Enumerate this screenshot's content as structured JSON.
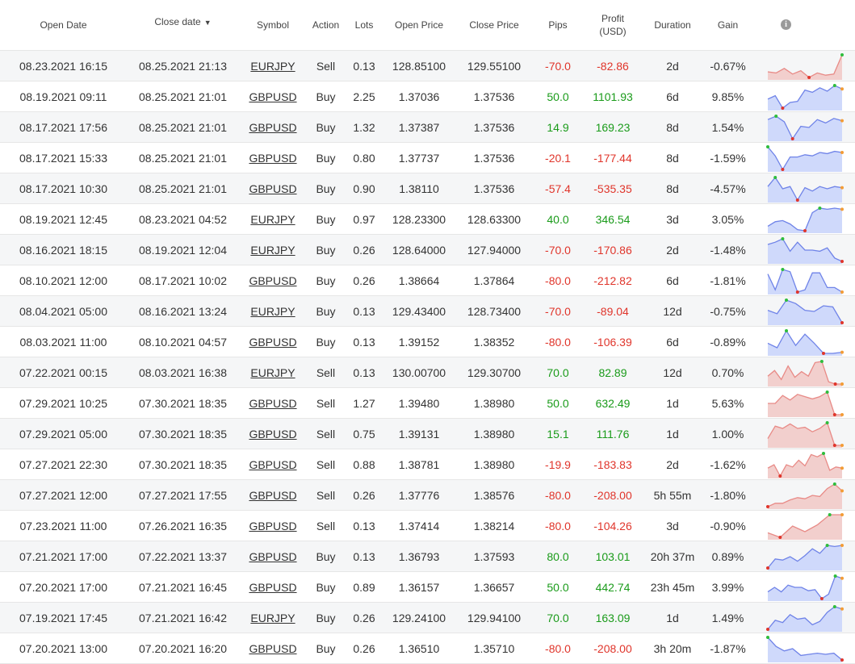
{
  "headers": {
    "open_date": "Open Date",
    "close_date": "Close date",
    "close_date_sort": "▼",
    "symbol": "Symbol",
    "action": "Action",
    "lots": "Lots",
    "open_price": "Open Price",
    "close_price": "Close Price",
    "pips": "Pips",
    "profit_line1": "Profit",
    "profit_line2": "(USD)",
    "duration": "Duration",
    "gain": "Gain",
    "info_icon": "i"
  },
  "colors": {
    "positive_text": "#1a9b1a",
    "negative_text": "#e0352b",
    "buy_line": "#6f83e8",
    "buy_fill": "#cfd9fb",
    "sell_line": "#e88a86",
    "sell_fill": "#f2cfcd",
    "marker_high": "#2ebd3c",
    "marker_low": "#e0352b",
    "marker_end": "#f39c35"
  },
  "rows": [
    {
      "open_date": "08.23.2021 16:15",
      "close_date": "08.25.2021 21:13",
      "symbol": "EURJPY",
      "action": "Sell",
      "lots": "0.13",
      "open_price": "128.85100",
      "close_price": "129.55100",
      "pips": "-70.0",
      "profit": "-82.86",
      "duration": "2d",
      "gain": "-0.67%",
      "trend": [
        0.25,
        0.2,
        0.4,
        0.15,
        0.3,
        0.0,
        0.2,
        0.1,
        0.15,
        1.0
      ]
    },
    {
      "open_date": "08.19.2021 09:11",
      "close_date": "08.25.2021 21:01",
      "symbol": "GBPUSD",
      "action": "Buy",
      "lots": "2.25",
      "open_price": "1.37036",
      "close_price": "1.37536",
      "pips": "50.0",
      "profit": "1101.93",
      "duration": "6d",
      "gain": "9.85%",
      "trend": [
        0.4,
        0.55,
        0.0,
        0.25,
        0.3,
        0.8,
        0.7,
        0.9,
        0.75,
        1.0,
        0.85
      ]
    },
    {
      "open_date": "08.17.2021 17:56",
      "close_date": "08.25.2021 21:01",
      "symbol": "GBPUSD",
      "action": "Buy",
      "lots": "1.32",
      "open_price": "1.37387",
      "close_price": "1.37536",
      "pips": "14.9",
      "profit": "169.23",
      "duration": "8d",
      "gain": "1.54%",
      "trend": [
        0.85,
        1.0,
        0.75,
        0.0,
        0.55,
        0.5,
        0.85,
        0.7,
        0.9,
        0.8
      ]
    },
    {
      "open_date": "08.17.2021 15:33",
      "close_date": "08.25.2021 21:01",
      "symbol": "GBPUSD",
      "action": "Buy",
      "lots": "0.80",
      "open_price": "1.37737",
      "close_price": "1.37536",
      "pips": "-20.1",
      "profit": "-177.44",
      "duration": "8d",
      "gain": "-1.59%",
      "trend": [
        1.0,
        0.6,
        0.0,
        0.55,
        0.55,
        0.65,
        0.6,
        0.75,
        0.7,
        0.8,
        0.75
      ]
    },
    {
      "open_date": "08.17.2021 10:30",
      "close_date": "08.25.2021 21:01",
      "symbol": "GBPUSD",
      "action": "Buy",
      "lots": "0.90",
      "open_price": "1.38110",
      "close_price": "1.37536",
      "pips": "-57.4",
      "profit": "-535.35",
      "duration": "8d",
      "gain": "-4.57%",
      "trend": [
        0.6,
        1.0,
        0.5,
        0.6,
        0.0,
        0.55,
        0.4,
        0.6,
        0.5,
        0.6,
        0.55
      ]
    },
    {
      "open_date": "08.19.2021 12:45",
      "close_date": "08.23.2021 04:52",
      "symbol": "EURJPY",
      "action": "Buy",
      "lots": "0.97",
      "open_price": "128.23300",
      "close_price": "128.63300",
      "pips": "40.0",
      "profit": "346.54",
      "duration": "3d",
      "gain": "3.05%",
      "trend": [
        0.2,
        0.4,
        0.45,
        0.3,
        0.05,
        0.0,
        0.8,
        1.0,
        0.95,
        1.0,
        0.95
      ]
    },
    {
      "open_date": "08.16.2021 18:15",
      "close_date": "08.19.2021 12:04",
      "symbol": "EURJPY",
      "action": "Buy",
      "lots": "0.26",
      "open_price": "128.64000",
      "close_price": "127.94000",
      "pips": "-70.0",
      "profit": "-170.86",
      "duration": "2d",
      "gain": "-1.48%",
      "trend": [
        0.75,
        0.85,
        1.0,
        0.45,
        0.85,
        0.5,
        0.5,
        0.45,
        0.6,
        0.15,
        0.0
      ]
    },
    {
      "open_date": "08.10.2021 12:00",
      "close_date": "08.17.2021 10:02",
      "symbol": "GBPUSD",
      "action": "Buy",
      "lots": "0.26",
      "open_price": "1.38664",
      "close_price": "1.37864",
      "pips": "-80.0",
      "profit": "-212.82",
      "duration": "6d",
      "gain": "-1.81%",
      "trend": [
        0.8,
        0.1,
        1.0,
        0.9,
        0.0,
        0.1,
        0.85,
        0.85,
        0.2,
        0.2,
        0.0
      ]
    },
    {
      "open_date": "08.04.2021 05:00",
      "close_date": "08.16.2021 13:24",
      "symbol": "EURJPY",
      "action": "Buy",
      "lots": "0.13",
      "open_price": "129.43400",
      "close_price": "128.73400",
      "pips": "-70.0",
      "profit": "-89.04",
      "duration": "12d",
      "gain": "-0.75%",
      "trend": [
        0.55,
        0.4,
        1.0,
        0.85,
        0.55,
        0.5,
        0.75,
        0.7,
        0.0
      ]
    },
    {
      "open_date": "08.03.2021 11:00",
      "close_date": "08.10.2021 04:57",
      "symbol": "GBPUSD",
      "action": "Buy",
      "lots": "0.13",
      "open_price": "1.39152",
      "close_price": "1.38352",
      "pips": "-80.0",
      "profit": "-106.39",
      "duration": "6d",
      "gain": "-0.89%",
      "trend": [
        0.45,
        0.25,
        1.0,
        0.35,
        0.85,
        0.45,
        0.0,
        0.0,
        0.05
      ]
    },
    {
      "open_date": "07.22.2021 00:15",
      "close_date": "08.03.2021 16:38",
      "symbol": "EURJPY",
      "action": "Sell",
      "lots": "0.13",
      "open_price": "130.00700",
      "close_price": "129.30700",
      "pips": "70.0",
      "profit": "82.89",
      "duration": "12d",
      "gain": "0.70%",
      "trend": [
        0.35,
        0.6,
        0.2,
        0.8,
        0.3,
        0.55,
        0.35,
        0.95,
        1.0,
        0.1,
        0.0,
        0.0
      ]
    },
    {
      "open_date": "07.29.2021 10:25",
      "close_date": "07.30.2021 18:35",
      "symbol": "GBPUSD",
      "action": "Sell",
      "lots": "1.27",
      "open_price": "1.39480",
      "close_price": "1.38980",
      "pips": "50.0",
      "profit": "632.49",
      "duration": "1d",
      "gain": "5.63%",
      "trend": [
        0.5,
        0.5,
        0.85,
        0.65,
        0.9,
        0.8,
        0.7,
        0.8,
        1.0,
        0.0,
        0.0
      ]
    },
    {
      "open_date": "07.29.2021 05:00",
      "close_date": "07.30.2021 18:35",
      "symbol": "GBPUSD",
      "action": "Sell",
      "lots": "0.75",
      "open_price": "1.39131",
      "close_price": "1.38980",
      "pips": "15.1",
      "profit": "111.76",
      "duration": "1d",
      "gain": "1.00%",
      "trend": [
        0.3,
        0.85,
        0.75,
        0.95,
        0.75,
        0.8,
        0.6,
        0.75,
        1.0,
        0.0,
        0.0
      ]
    },
    {
      "open_date": "07.27.2021 22:30",
      "close_date": "07.30.2021 18:35",
      "symbol": "GBPUSD",
      "action": "Sell",
      "lots": "0.88",
      "open_price": "1.38781",
      "close_price": "1.38980",
      "pips": "-19.9",
      "profit": "-183.83",
      "duration": "2d",
      "gain": "-1.62%",
      "trend": [
        0.35,
        0.5,
        0.0,
        0.5,
        0.4,
        0.7,
        0.45,
        0.95,
        0.85,
        1.0,
        0.25,
        0.4,
        0.35
      ]
    },
    {
      "open_date": "07.27.2021 12:00",
      "close_date": "07.27.2021 17:55",
      "symbol": "GBPUSD",
      "action": "Sell",
      "lots": "0.26",
      "open_price": "1.37776",
      "close_price": "1.38576",
      "pips": "-80.0",
      "profit": "-208.00",
      "duration": "5h 55m",
      "gain": "-1.80%",
      "trend": [
        0.0,
        0.15,
        0.15,
        0.3,
        0.4,
        0.35,
        0.5,
        0.45,
        0.8,
        1.0,
        0.7
      ]
    },
    {
      "open_date": "07.23.2021 11:00",
      "close_date": "07.26.2021 16:35",
      "symbol": "GBPUSD",
      "action": "Sell",
      "lots": "0.13",
      "open_price": "1.37414",
      "close_price": "1.38214",
      "pips": "-80.0",
      "profit": "-104.26",
      "duration": "3d",
      "gain": "-0.90%",
      "trend": [
        0.2,
        0.0,
        0.5,
        0.25,
        0.55,
        1.0,
        1.0
      ]
    },
    {
      "open_date": "07.21.2021 17:00",
      "close_date": "07.22.2021 13:37",
      "symbol": "GBPUSD",
      "action": "Buy",
      "lots": "0.13",
      "open_price": "1.36793",
      "close_price": "1.37593",
      "pips": "80.0",
      "profit": "103.01",
      "duration": "20h 37m",
      "gain": "0.89%",
      "trend": [
        0.0,
        0.4,
        0.35,
        0.5,
        0.3,
        0.55,
        0.85,
        0.65,
        1.0,
        0.95,
        1.0
      ]
    },
    {
      "open_date": "07.20.2021 17:00",
      "close_date": "07.21.2021 16:45",
      "symbol": "GBPUSD",
      "action": "Buy",
      "lots": "0.89",
      "open_price": "1.36157",
      "close_price": "1.36657",
      "pips": "50.0",
      "profit": "442.74",
      "duration": "23h 45m",
      "gain": "3.99%",
      "trend": [
        0.3,
        0.5,
        0.3,
        0.6,
        0.5,
        0.5,
        0.35,
        0.4,
        0.0,
        0.2,
        1.0,
        0.9
      ]
    },
    {
      "open_date": "07.19.2021 17:45",
      "close_date": "07.21.2021 16:42",
      "symbol": "EURJPY",
      "action": "Buy",
      "lots": "0.26",
      "open_price": "129.24100",
      "close_price": "129.94100",
      "pips": "70.0",
      "profit": "163.09",
      "duration": "1d",
      "gain": "1.49%",
      "trend": [
        0.0,
        0.4,
        0.3,
        0.65,
        0.45,
        0.5,
        0.2,
        0.35,
        0.75,
        1.0,
        0.9
      ]
    },
    {
      "open_date": "07.20.2021 13:00",
      "close_date": "07.20.2021 16:20",
      "symbol": "GBPUSD",
      "action": "Buy",
      "lots": "0.26",
      "open_price": "1.36510",
      "close_price": "1.35710",
      "pips": "-80.0",
      "profit": "-208.00",
      "duration": "3h 20m",
      "gain": "-1.87%",
      "trend": [
        1.0,
        0.6,
        0.4,
        0.5,
        0.2,
        0.25,
        0.3,
        0.25,
        0.3,
        0.0
      ]
    }
  ]
}
